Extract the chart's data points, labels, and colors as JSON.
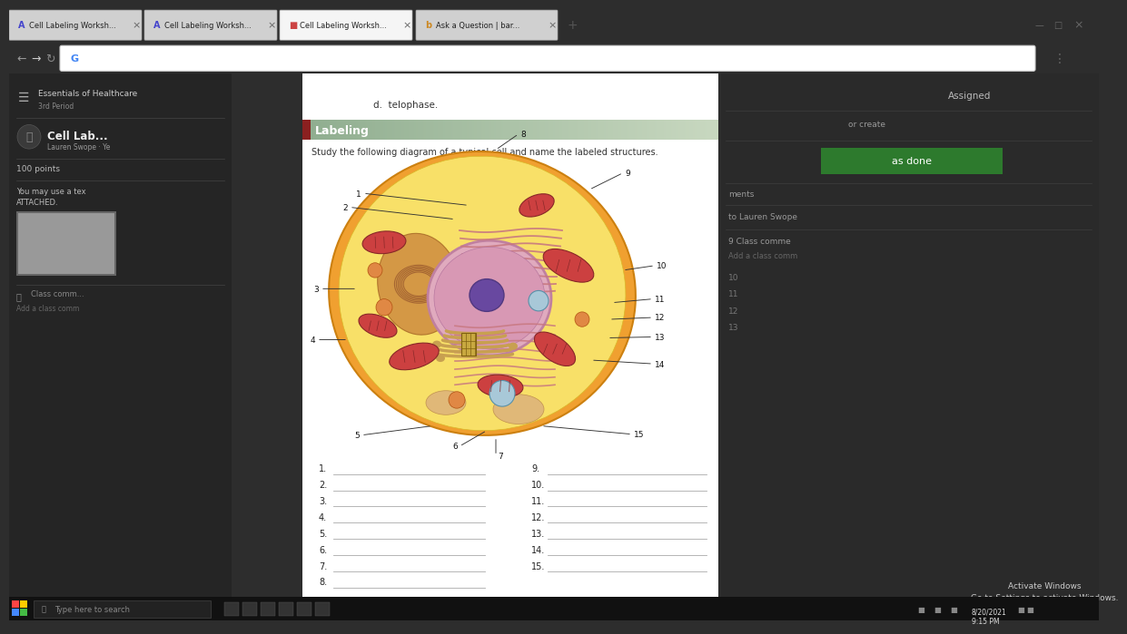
{
  "bg_color": "#2d2d2d",
  "browser_bar_color": "#c9a0a0",
  "tab_text": [
    "Cell Labeling Worksheet",
    "Cell Labeling Worksheet",
    "Cell Labeling Worksheet",
    "Ask a Question | bartleby"
  ],
  "tab_active": 2,
  "page_bg": "#ffffff",
  "labeling_header_text": "Labeling",
  "labeling_header_bg_left": "#8fad8f",
  "labeling_header_bg_right": "#b8ccb0",
  "labeling_header_accent": "#8B2020",
  "instruction_text": "Study the following diagram of a typical cell and name the labeled structures.",
  "telophase_text": "d.  telophase.",
  "label_numbers_left": [
    "1.",
    "2.",
    "3.",
    "4.",
    "5.",
    "6.",
    "7.",
    "8."
  ],
  "label_numbers_right": [
    "9.",
    "10.",
    "11.",
    "12.",
    "13.",
    "14.",
    "15."
  ],
  "taskbar_time": "9:15 PM",
  "taskbar_date": "8/20/2021",
  "activate_windows_text": "Activate Windows\nGo to Settings to activate Windows.",
  "search_text": "Type here to search",
  "cell_outer_color": "#f0a030",
  "cell_cytoplasm_color": "#f5d060",
  "nucleus_outer_color": "#e8b0c0",
  "nucleus_inner_color": "#d898b0",
  "nucleolus_color": "#7050a0",
  "rough_er_color": "#c87080",
  "golgi_color": "#c8a060",
  "mito_color": "#cc4444",
  "vacuole_color": "#a0c8d8",
  "lyso_color": "#e08844",
  "smooth_er_color": "#c87848"
}
